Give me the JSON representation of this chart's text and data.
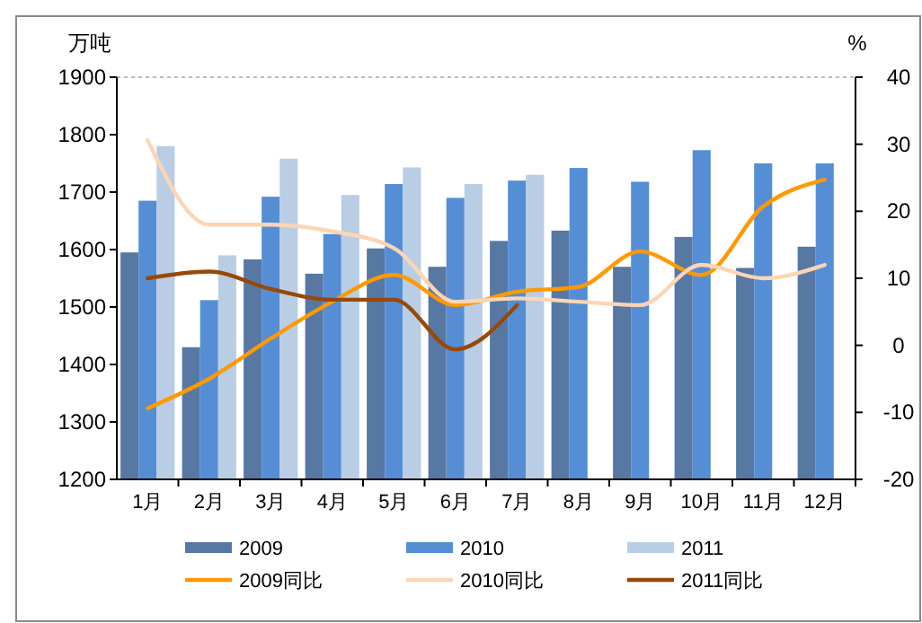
{
  "chart_data": {
    "type": "bar",
    "ylabel": "万吨",
    "y2label": "%",
    "categories": [
      "1月",
      "2月",
      "3月",
      "4月",
      "5月",
      "6月",
      "7月",
      "8月",
      "9月",
      "10月",
      "11月",
      "12月"
    ],
    "series": [
      {
        "name": "2009",
        "color": "#5878a4",
        "values": [
          1595,
          1430,
          1583,
          1558,
          1602,
          1570,
          1615,
          1633,
          1570,
          1622,
          1568,
          1605
        ]
      },
      {
        "name": "2010",
        "color": "#558ed5",
        "values": [
          1685,
          1512,
          1692,
          1627,
          1714,
          1690,
          1720,
          1742,
          1718,
          1773,
          1750,
          1750
        ]
      },
      {
        "name": "2011",
        "color": "#b9cde5",
        "values": [
          1780,
          1590,
          1758,
          1695,
          1743,
          1714,
          1730,
          null,
          null,
          null,
          null,
          null
        ]
      },
      {
        "name": "2009同比",
        "type": "line",
        "axis": "y2",
        "color": "#ff9900",
        "values": [
          -9.4,
          -5,
          1,
          6.5,
          10.5,
          6,
          8,
          8.7,
          14,
          10.5,
          20.7,
          24.7
        ]
      },
      {
        "name": "2010同比",
        "type": "line",
        "axis": "y2",
        "color": "#fcd5b5",
        "values": [
          30.6,
          18,
          18,
          17,
          14.5,
          6.5,
          7,
          6.5,
          6,
          12,
          10,
          12
        ]
      },
      {
        "name": "2011同比",
        "type": "line",
        "axis": "y2",
        "color": "#984807",
        "values": [
          10,
          11,
          8.4,
          6.8,
          6.8,
          -0.6,
          6,
          null,
          null,
          null,
          null,
          null
        ]
      }
    ],
    "ylim": [
      1200,
      1900
    ],
    "yticks": [
      1200,
      1300,
      1400,
      1500,
      1600,
      1700,
      1800,
      1900
    ],
    "y2lim": [
      -20,
      40
    ],
    "y2ticks": [
      -20,
      -10,
      0,
      10,
      20,
      30,
      40
    ],
    "legend": "bottom",
    "grid": false
  }
}
